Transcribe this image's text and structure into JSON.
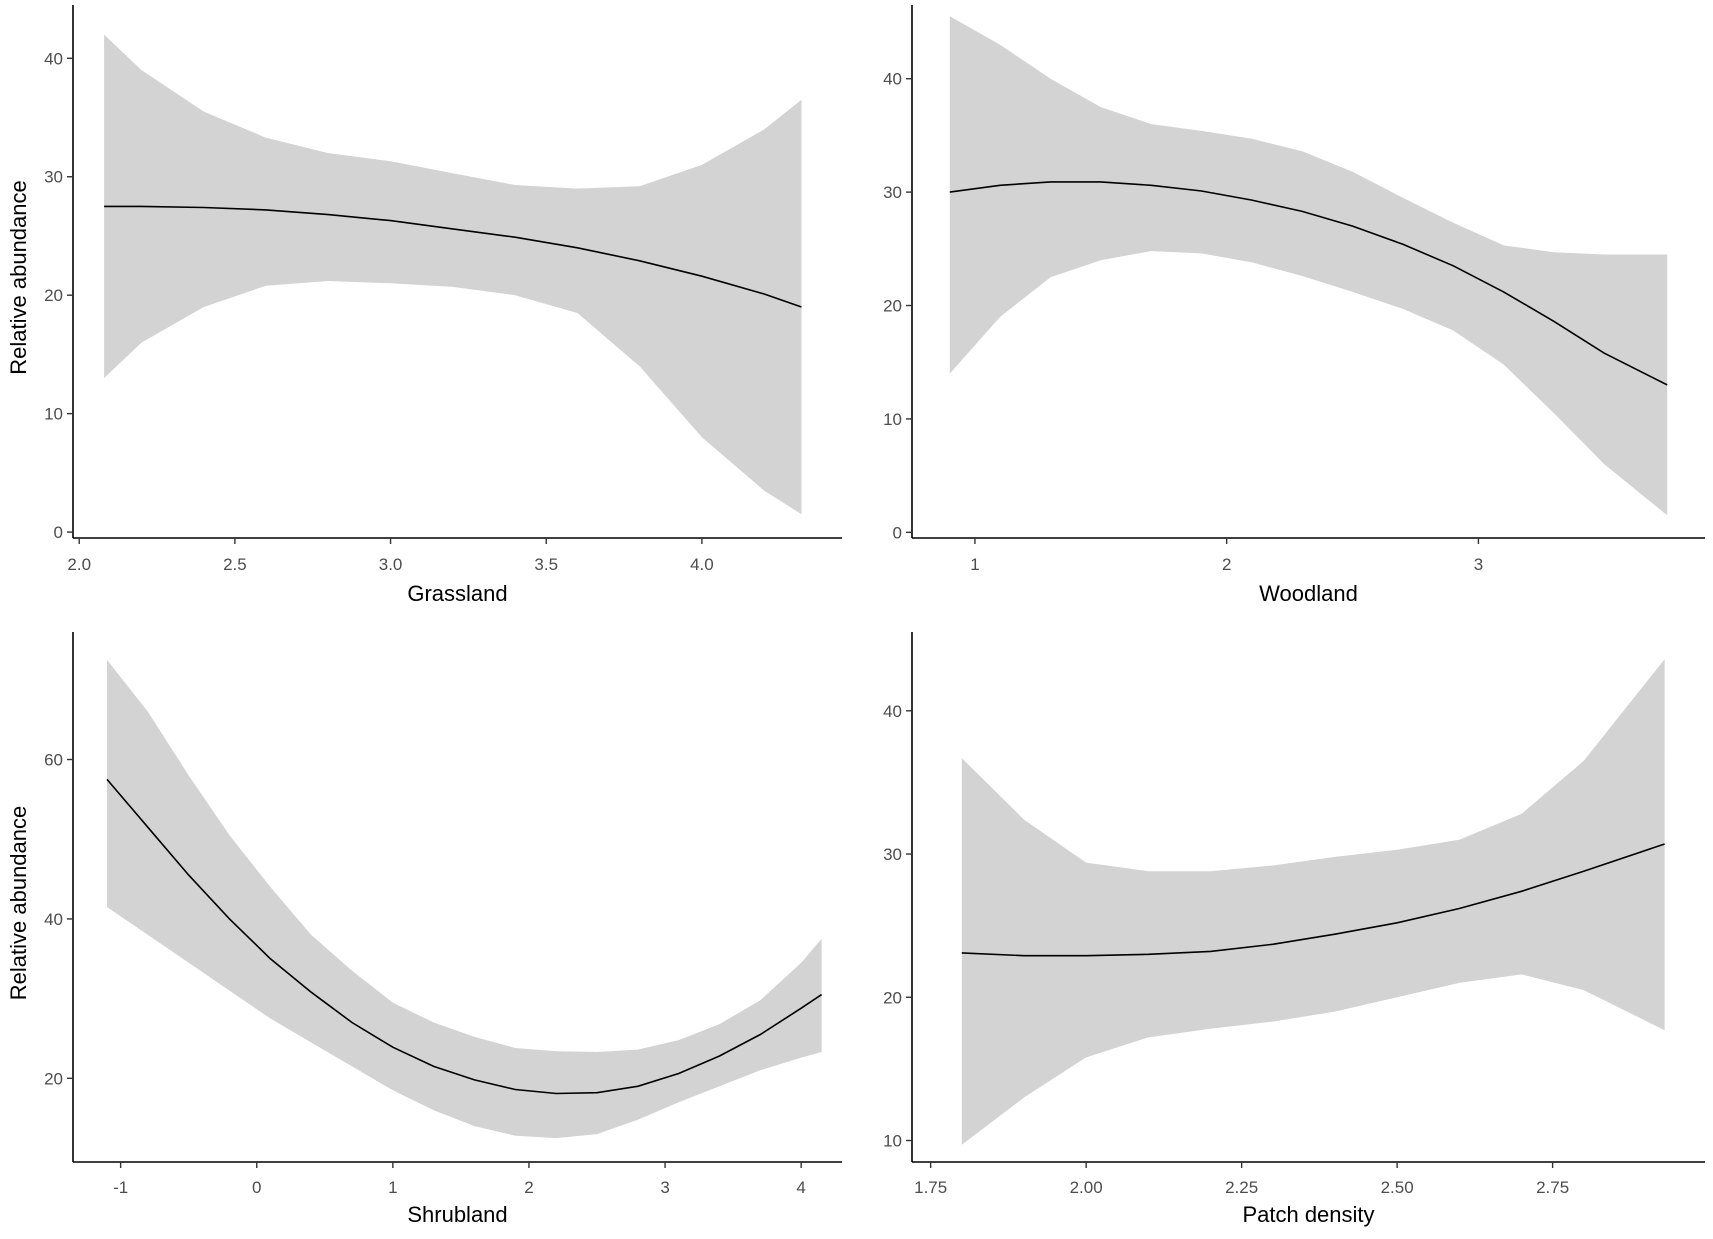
{
  "colors": {
    "ribbon": "#d3d3d3",
    "line": "#000000",
    "axis": "#000000",
    "tick_label": "#4d4d4d"
  },
  "chart_data": [
    {
      "type": "line",
      "panel": "top-left",
      "xlabel": "Grassland",
      "ylabel": "Relative abundance",
      "xlim": [
        1.98,
        4.45
      ],
      "ylim": [
        -0.5,
        44.5
      ],
      "xticks": [
        2.0,
        2.5,
        3.0,
        3.5,
        4.0
      ],
      "xtick_labels": [
        "2.0",
        "2.5",
        "3.0",
        "3.5",
        "4.0"
      ],
      "yticks": [
        0,
        10,
        20,
        30,
        40
      ],
      "ytick_labels": [
        "0",
        "10",
        "20",
        "30",
        "40"
      ],
      "grid": false,
      "x": [
        2.08,
        2.2,
        2.4,
        2.6,
        2.8,
        3.0,
        3.2,
        3.4,
        3.6,
        3.8,
        4.0,
        4.2,
        4.32
      ],
      "fit": [
        27.5,
        27.5,
        27.4,
        27.2,
        26.8,
        26.3,
        25.6,
        24.9,
        24.0,
        22.9,
        21.6,
        20.1,
        19.0
      ],
      "lower": [
        13.0,
        16.0,
        19.0,
        20.8,
        21.2,
        21.0,
        20.7,
        20.0,
        18.5,
        14.0,
        8.0,
        3.5,
        1.5
      ],
      "upper": [
        42.0,
        39.0,
        35.5,
        33.3,
        32.0,
        31.3,
        30.3,
        29.3,
        29.0,
        29.2,
        31.0,
        34.0,
        36.5
      ]
    },
    {
      "type": "line",
      "panel": "top-right",
      "xlabel": "Woodland",
      "ylabel": "",
      "xlim": [
        0.75,
        3.9
      ],
      "ylim": [
        -0.5,
        46.5
      ],
      "xticks": [
        1,
        2,
        3
      ],
      "xtick_labels": [
        "1",
        "2",
        "3"
      ],
      "yticks": [
        0,
        10,
        20,
        30,
        40
      ],
      "ytick_labels": [
        "0",
        "10",
        "20",
        "30",
        "40"
      ],
      "grid": false,
      "x": [
        0.9,
        1.1,
        1.3,
        1.5,
        1.7,
        1.9,
        2.1,
        2.3,
        2.5,
        2.7,
        2.9,
        3.1,
        3.3,
        3.5,
        3.75
      ],
      "fit": [
        30.0,
        30.6,
        30.9,
        30.9,
        30.6,
        30.1,
        29.3,
        28.3,
        27.0,
        25.4,
        23.5,
        21.2,
        18.6,
        15.8,
        13.0
      ],
      "lower": [
        14.0,
        19.0,
        22.5,
        24.0,
        24.8,
        24.6,
        23.8,
        22.6,
        21.2,
        19.7,
        17.8,
        14.8,
        10.5,
        6.0,
        1.5
      ],
      "upper": [
        45.5,
        43.0,
        40.0,
        37.5,
        36.0,
        35.4,
        34.7,
        33.6,
        31.8,
        29.5,
        27.3,
        25.3,
        24.7,
        24.5,
        24.5
      ]
    },
    {
      "type": "line",
      "panel": "bottom-left",
      "xlabel": "Shrubland",
      "ylabel": "Relative abundance",
      "xlim": [
        -1.35,
        4.3
      ],
      "ylim": [
        9.5,
        76
      ],
      "xticks": [
        -1,
        0,
        1,
        2,
        3,
        4
      ],
      "xtick_labels": [
        "-1",
        "0",
        "1",
        "2",
        "3",
        "4"
      ],
      "yticks": [
        20,
        40,
        60
      ],
      "ytick_labels": [
        "20",
        "40",
        "60"
      ],
      "grid": false,
      "x": [
        -1.1,
        -0.8,
        -0.5,
        -0.2,
        0.1,
        0.4,
        0.7,
        1.0,
        1.3,
        1.6,
        1.9,
        2.2,
        2.5,
        2.8,
        3.1,
        3.4,
        3.7,
        4.0,
        4.15
      ],
      "fit": [
        57.5,
        51.5,
        45.5,
        40.0,
        35.0,
        30.8,
        27.0,
        23.9,
        21.5,
        19.8,
        18.6,
        18.1,
        18.2,
        19.0,
        20.6,
        22.8,
        25.5,
        28.8,
        30.5
      ],
      "lower": [
        41.5,
        38.0,
        34.5,
        31.0,
        27.5,
        24.5,
        21.5,
        18.5,
        16.0,
        14.0,
        12.8,
        12.5,
        13.0,
        14.8,
        17.0,
        19.0,
        21.0,
        22.6,
        23.3
      ],
      "upper": [
        72.5,
        66.0,
        58.0,
        50.5,
        44.0,
        38.0,
        33.5,
        29.5,
        27.0,
        25.2,
        23.8,
        23.4,
        23.3,
        23.6,
        24.8,
        26.8,
        29.8,
        34.5,
        37.5
      ]
    },
    {
      "type": "line",
      "panel": "bottom-right",
      "xlabel": "Patch density",
      "ylabel": "",
      "xlim": [
        1.72,
        2.995
      ],
      "ylim": [
        8.5,
        45.5
      ],
      "xticks": [
        1.75,
        2.0,
        2.25,
        2.5,
        2.75
      ],
      "xtick_labels": [
        "1.75",
        "2.00",
        "2.25",
        "2.50",
        "2.75"
      ],
      "yticks": [
        10,
        20,
        30,
        40
      ],
      "ytick_labels": [
        "10",
        "20",
        "30",
        "40"
      ],
      "grid": false,
      "x": [
        1.8,
        1.9,
        2.0,
        2.1,
        2.2,
        2.3,
        2.4,
        2.5,
        2.6,
        2.7,
        2.8,
        2.93
      ],
      "fit": [
        23.1,
        22.9,
        22.9,
        23.0,
        23.2,
        23.7,
        24.4,
        25.2,
        26.2,
        27.4,
        28.8,
        30.7
      ],
      "lower": [
        9.7,
        13.0,
        15.8,
        17.2,
        17.8,
        18.3,
        19.0,
        20.0,
        21.0,
        21.6,
        20.5,
        17.7
      ],
      "upper": [
        36.7,
        32.4,
        29.4,
        28.8,
        28.8,
        29.2,
        29.8,
        30.3,
        31.0,
        32.8,
        36.5,
        43.6
      ]
    }
  ]
}
